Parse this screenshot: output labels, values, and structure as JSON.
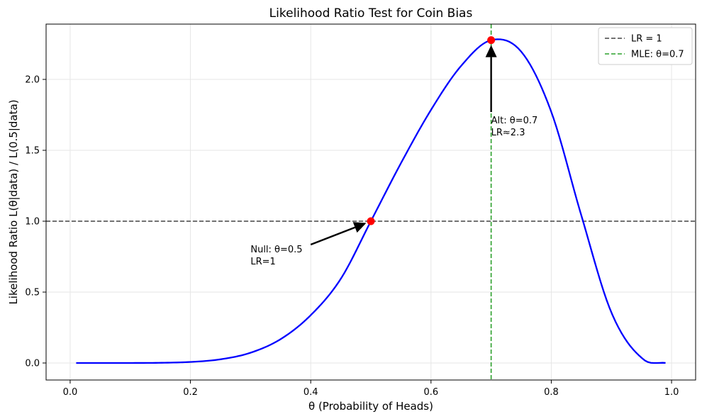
{
  "chart_data": {
    "type": "line",
    "title": "Likelihood Ratio Test for Coin Bias",
    "xlabel": "θ (Probability of Heads)",
    "ylabel": "Likelihood Ratio L(θ|data) / L(0.5|data)",
    "xlim": [
      -0.04,
      1.04
    ],
    "ylim": [
      -0.12,
      2.39
    ],
    "xticks": [
      0.0,
      0.2,
      0.4,
      0.6,
      0.8,
      1.0
    ],
    "xtick_labels": [
      "0.0",
      "0.2",
      "0.4",
      "0.6",
      "0.8",
      "1.0"
    ],
    "yticks": [
      0.0,
      0.5,
      1.0,
      1.5,
      2.0
    ],
    "ytick_labels": [
      "0.0",
      "0.5",
      "1.0",
      "1.5",
      "2.0"
    ],
    "grid": true,
    "legend_position": "top-right",
    "series": [
      {
        "kind": "curve",
        "color": "#0000ff",
        "x": [
          0.01,
          0.05,
          0.1,
          0.15,
          0.2,
          0.25,
          0.3,
          0.35,
          0.4,
          0.45,
          0.5,
          0.55,
          0.6,
          0.65,
          0.7,
          0.75,
          0.8,
          0.85,
          0.9,
          0.95,
          0.99
        ],
        "y": [
          0.0,
          0.0,
          0.0001,
          0.0015,
          0.0073,
          0.0259,
          0.0724,
          0.1683,
          0.3371,
          0.5936,
          1.0,
          1.409,
          1.785,
          2.095,
          2.277,
          2.196,
          1.771,
          1.04,
          0.3558,
          0.0377,
          0.0005
        ]
      }
    ],
    "reference_lines": [
      {
        "orientation": "horizontal",
        "value": 1.0,
        "label": "LR = 1",
        "color": "#444444",
        "style": "dashed"
      },
      {
        "orientation": "vertical",
        "value": 0.7,
        "label": "MLE: θ=0.7",
        "color": "#2ca02c",
        "style": "dashed"
      }
    ],
    "points": [
      {
        "x": 0.5,
        "y": 1.0,
        "color": "#ff0000"
      },
      {
        "x": 0.7,
        "y": 2.277,
        "color": "#ff0000"
      }
    ],
    "annotations": [
      {
        "lines": [
          "Null: θ=0.5",
          "LR=1"
        ],
        "text_x": 0.3,
        "text_y": 0.78,
        "arrow_from": [
          0.4,
          0.835
        ],
        "arrow_to": [
          0.5,
          1.0
        ]
      },
      {
        "lines": [
          "Alt: θ=0.7",
          "LR≈2.3"
        ],
        "text_x": 0.7,
        "text_y": 1.69,
        "arrow_from": [
          0.7,
          1.77
        ],
        "arrow_to": [
          0.7,
          2.277
        ]
      }
    ],
    "legend": [
      "LR = 1",
      "MLE: θ=0.7"
    ]
  }
}
